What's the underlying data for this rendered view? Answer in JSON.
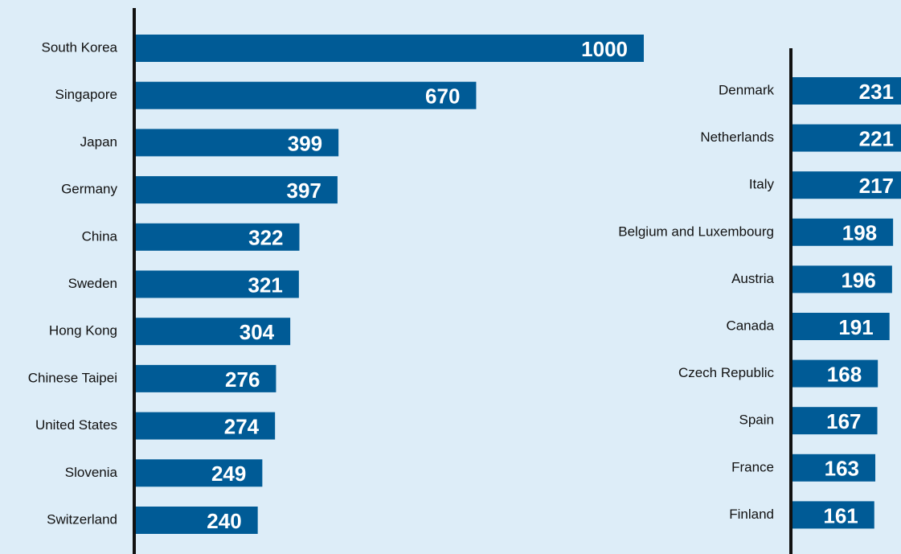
{
  "chart_data": [
    {
      "type": "bar",
      "orientation": "horizontal",
      "color": "#005b96",
      "xlim": [
        0,
        1000
      ],
      "categories": [
        "South Korea",
        "Singapore",
        "Japan",
        "Germany",
        "China",
        "Sweden",
        "Hong Kong",
        "Chinese Taipei",
        "United States",
        "Slovenia",
        "Switzerland"
      ],
      "values": [
        1000,
        670,
        399,
        397,
        322,
        321,
        304,
        276,
        274,
        249,
        240
      ]
    },
    {
      "type": "bar",
      "orientation": "horizontal",
      "color": "#005b96",
      "xlim": [
        0,
        1000
      ],
      "categories": [
        "Denmark",
        "Netherlands",
        "Italy",
        "Belgium and Luxembourg",
        "Austria",
        "Canada",
        "Czech Republic",
        "Spain",
        "France",
        "Finland"
      ],
      "values": [
        231,
        221,
        217,
        198,
        196,
        191,
        168,
        167,
        163,
        161
      ]
    }
  ]
}
